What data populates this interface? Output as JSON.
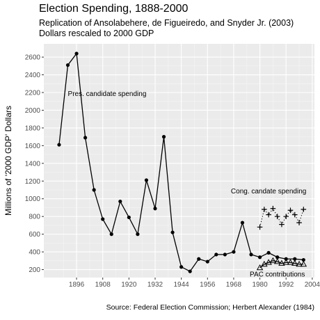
{
  "chart_data": {
    "type": "line",
    "title": "Election Spending, 1888-2000",
    "subtitle_lines": [
      "Replication of Ansolabehere, de Figueiredo, and Snyder Jr. (2003)",
      "Dollars rescaled to 2000 GDP"
    ],
    "caption": "Source: Federal Election Commission; Herbert Alexander (1984)",
    "xlabel": "",
    "ylabel": "Millions of '2000 GDP' Dollars",
    "xlim": [
      1881,
      2005
    ],
    "ylim": [
      110,
      2750
    ],
    "x_ticks": [
      1896,
      1908,
      1920,
      1932,
      1944,
      1956,
      1968,
      1980,
      1992,
      2004
    ],
    "y_ticks": [
      200,
      400,
      600,
      800,
      1000,
      1200,
      1400,
      1600,
      1800,
      2000,
      2200,
      2400,
      2600
    ],
    "grid": true,
    "legend": "none",
    "series": [
      {
        "marker": "dot",
        "line": "solid",
        "x": [
          1888,
          1892,
          1896,
          1900,
          1904,
          1908,
          1912,
          1916,
          1920,
          1924,
          1928,
          1932,
          1936,
          1940,
          1944,
          1948,
          1952,
          1956,
          1960,
          1964,
          1968,
          1972,
          1976,
          1980,
          1984,
          1988,
          1992,
          1996,
          2000
        ],
        "values": [
          1610,
          2510,
          2640,
          1690,
          1100,
          770,
          600,
          970,
          790,
          600,
          1210,
          890,
          1700,
          620,
          230,
          180,
          320,
          290,
          370,
          370,
          400,
          730,
          370,
          340,
          390,
          340,
          320,
          320,
          310
        ]
      },
      {
        "marker": "plus",
        "line": "dotted",
        "x": [
          1980,
          1982,
          1984,
          1986,
          1988,
          1990,
          1992,
          1994,
          1996,
          1998,
          2000
        ],
        "values": [
          680,
          880,
          820,
          890,
          800,
          710,
          800,
          870,
          820,
          730,
          880
        ]
      },
      {
        "marker": "triangle",
        "line": "solid",
        "x": [
          1980,
          1982,
          1984,
          1986,
          1988,
          1990,
          1992,
          1994,
          1996,
          1998,
          2000
        ],
        "values": [
          220,
          260,
          280,
          300,
          290,
          270,
          280,
          280,
          270,
          260,
          260
        ]
      }
    ],
    "annotations": [
      {
        "text": "Pres. candidate spending",
        "x": 1910,
        "y": 2190
      },
      {
        "text": "Cong. candate spending",
        "x": 1984,
        "y": 1090
      },
      {
        "text": "PAC contributions",
        "x": 1988,
        "y": 150
      }
    ],
    "colors": {
      "panel": "#ebebeb",
      "grid_major": "#ffffff",
      "grid_minor": "#f5f5f5",
      "series": "#000000"
    }
  }
}
